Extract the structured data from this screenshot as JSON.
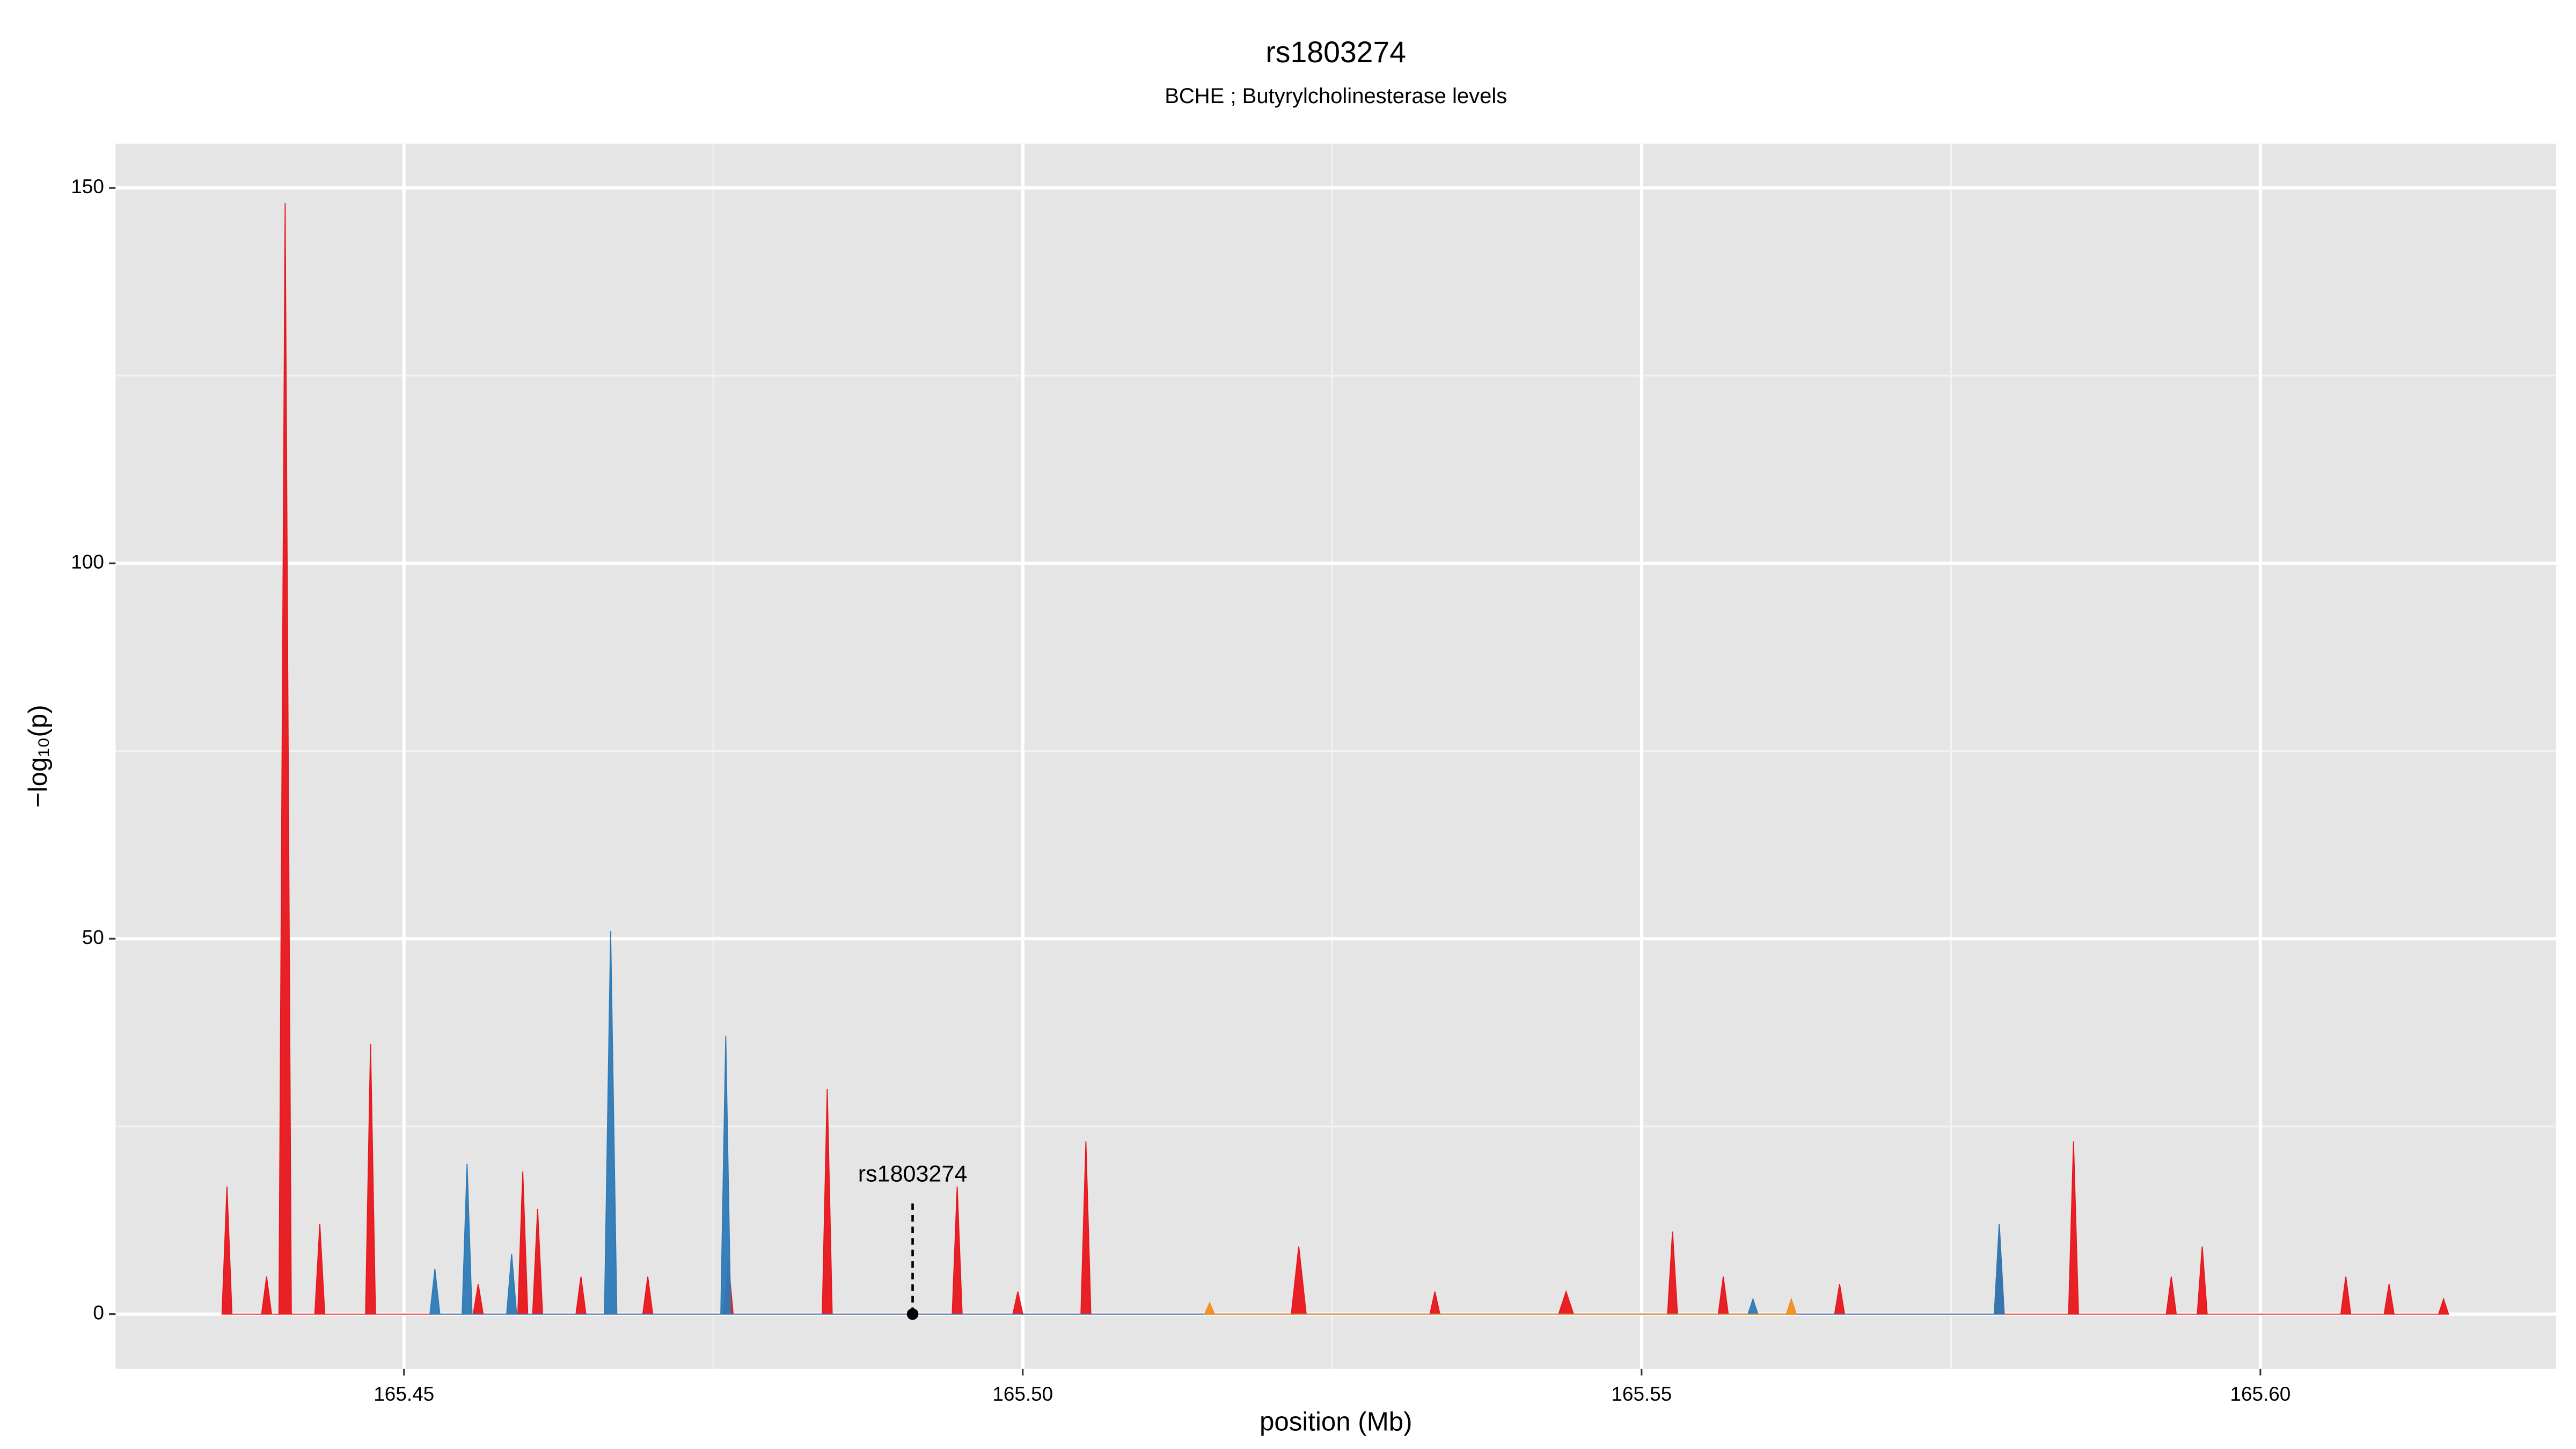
{
  "chart_data": {
    "type": "area",
    "title": "rs1803274",
    "subtitle": "BCHE ; Butyrylcholinesterase levels",
    "x_label": "position (Mb)",
    "y_label": "−log₁₀(p)",
    "xlim": [
      165.4267,
      165.6239
    ],
    "ylim": [
      -7.3,
      155.9
    ],
    "xticks": [
      165.45,
      {
        "value": 165.5,
        "label": "165.50"
      },
      165.55,
      {
        "value": 165.6,
        "label": "165.60"
      }
    ],
    "yticks": [
      0,
      50,
      100,
      150
    ],
    "minor_xgrid": [
      165.475,
      165.525,
      165.575
    ],
    "minor_ygrid": [
      25,
      75,
      125
    ],
    "grid": true,
    "series": [
      {
        "color": "#e8161b",
        "x": [
          165.4353,
          165.4357,
          165.4361,
          165.4385,
          165.4389,
          165.4393,
          165.4399,
          165.4404,
          165.4409,
          165.4428,
          165.4432,
          165.4436,
          165.4469,
          165.4473,
          165.4477,
          165.4556,
          165.456,
          165.4564,
          165.4592,
          165.4596,
          165.46,
          165.4604,
          165.4608,
          165.4612,
          165.4639,
          165.4643,
          165.4647,
          165.4693,
          165.4697,
          165.4701,
          165.4758,
          165.4762,
          165.4766,
          165.4838,
          165.4842,
          165.4846,
          165.4943,
          165.4947,
          165.4951,
          165.4992,
          165.4996,
          165.5,
          165.5047,
          165.5051,
          165.5055,
          165.5217,
          165.5223,
          165.5229,
          165.5329,
          165.5333,
          165.5337,
          165.5433,
          165.5439,
          165.5445,
          165.5521,
          165.5525,
          165.5529,
          165.5562,
          165.5566,
          165.557,
          165.5656,
          165.566,
          165.5664,
          165.5785,
          165.5789,
          165.5793,
          165.5845,
          165.5849,
          165.5853,
          165.5924,
          165.5928,
          165.5932,
          165.5949,
          165.5953,
          165.5957,
          165.6065,
          165.6069,
          165.6073,
          165.61,
          165.6104,
          165.6108,
          165.6144,
          165.6148,
          165.6152
        ],
        "values": [
          0,
          17,
          0,
          0,
          5,
          0,
          0,
          148,
          0,
          0,
          12,
          0,
          0,
          36,
          0,
          0,
          4,
          0,
          0,
          19,
          0,
          0,
          14,
          0,
          0,
          5,
          0,
          0,
          5,
          0,
          0,
          7,
          0,
          0,
          30,
          0,
          0,
          17,
          0,
          0,
          3,
          0,
          0,
          23,
          0,
          0,
          9,
          0,
          0,
          3,
          0,
          0,
          3,
          0,
          0,
          11,
          0,
          0,
          5,
          0,
          0,
          4,
          0,
          0,
          12,
          0,
          0,
          23,
          0,
          0,
          5,
          0,
          0,
          9,
          0,
          0,
          5,
          0,
          0,
          4,
          0,
          0,
          2,
          0
        ]
      },
      {
        "color": "#2e7ab6",
        "x": [
          165.4521,
          165.4525,
          165.4529,
          165.4547,
          165.4551,
          165.4555,
          165.4583,
          165.4587,
          165.4591,
          165.4662,
          165.4667,
          165.4672,
          165.4756,
          165.476,
          165.4764,
          165.5586,
          165.559,
          165.5594,
          165.5785,
          165.5789,
          165.5793
        ],
        "values": [
          0,
          6,
          0,
          0,
          20,
          0,
          0,
          8,
          0,
          0,
          51,
          0,
          0,
          37,
          0,
          0,
          2,
          0,
          0,
          12,
          0
        ]
      },
      {
        "color": "#f28e1c",
        "x": [
          165.5147,
          165.5151,
          165.5155,
          165.5617,
          165.5621,
          165.5625
        ],
        "values": [
          0,
          1.5,
          0,
          0,
          2,
          0
        ]
      }
    ],
    "annotation": {
      "label": "rs1803274",
      "x": 165.4911,
      "y": 0
    }
  }
}
